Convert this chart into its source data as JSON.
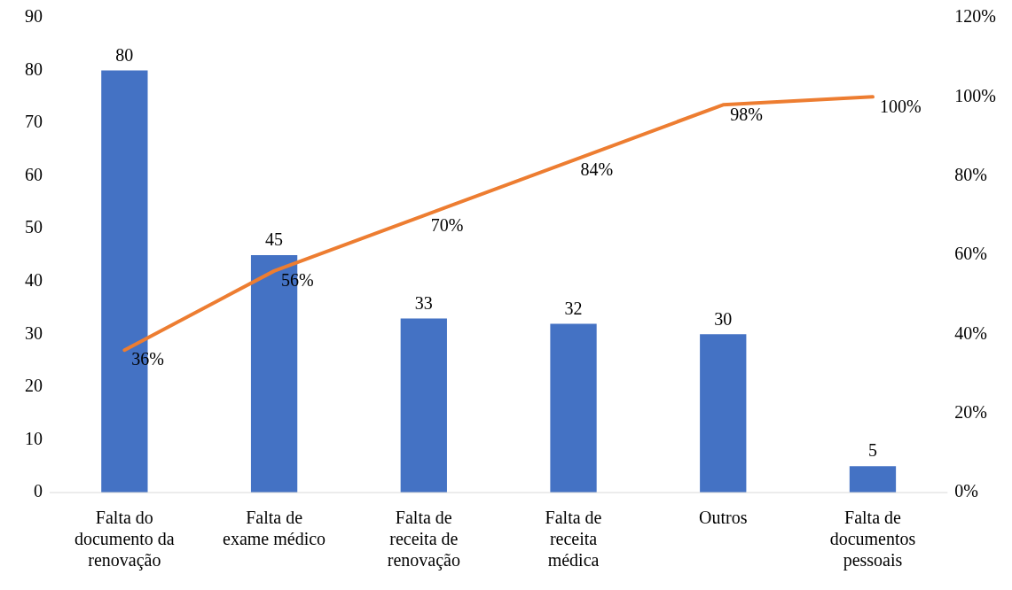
{
  "chart_data": {
    "type": "bar",
    "categories": [
      "Falta do documento da renovação",
      "Falta de exame médico",
      "Falta de receita de renovação",
      "Falta de receita médica",
      "Outros",
      "Falta de documentos pessoais"
    ],
    "series": [
      {
        "color": "#4472c4",
        "values": [
          80,
          45,
          33,
          32,
          30,
          5
        ],
        "value_labels": [
          "80",
          "45",
          "33",
          "32",
          "30",
          "5"
        ]
      },
      {
        "type": "line",
        "axis": "y2",
        "color": "#ed7d31",
        "values": [
          36,
          56,
          70,
          84,
          98,
          100
        ],
        "value_labels": [
          "36%",
          "56%",
          "70%",
          "84%",
          "98%",
          "100%"
        ]
      }
    ],
    "ylim": [
      0,
      90
    ],
    "yticks": [
      0,
      10,
      20,
      30,
      40,
      50,
      60,
      70,
      80,
      90
    ],
    "y2lim": [
      0,
      120
    ],
    "y2ticks": [
      {
        "value": 0,
        "label": "0%"
      },
      {
        "value": 20,
        "label": "20%"
      },
      {
        "value": 40,
        "label": "40%"
      },
      {
        "value": 60,
        "label": "60%"
      },
      {
        "value": 80,
        "label": "80%"
      },
      {
        "value": 100,
        "label": "100%"
      },
      {
        "value": 120,
        "label": "120%"
      }
    ],
    "grid": false,
    "legend": false,
    "marker": "none"
  }
}
